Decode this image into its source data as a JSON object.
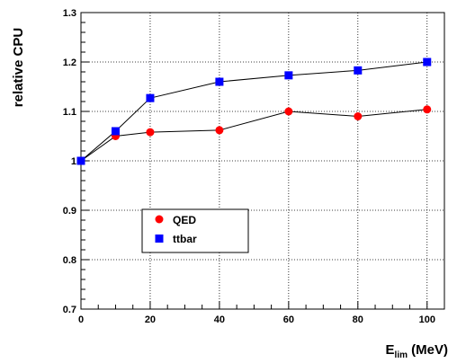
{
  "chart_data": {
    "type": "line",
    "title": "",
    "xlabel_main": "E",
    "xlabel_sub": "lim",
    "xlabel_unit": " (MeV)",
    "ylabel": "relative CPU",
    "xlim": [
      0,
      105
    ],
    "ylim": [
      0.7,
      1.3
    ],
    "xticks": [
      0,
      20,
      40,
      60,
      80,
      100
    ],
    "yticks": [
      0.7,
      0.8,
      0.9,
      1,
      1.1,
      1.2,
      1.3
    ],
    "ytick_labels": [
      "0.7",
      "0.8",
      "0.9",
      "1",
      "1.1",
      "1.2",
      "1.3"
    ],
    "grid": true,
    "legend_position": "lower-left",
    "series": [
      {
        "name": "QED",
        "color": "#ff0000",
        "marker": "circle",
        "x": [
          0,
          10,
          20,
          40,
          60,
          80,
          100
        ],
        "y": [
          1.0,
          1.05,
          1.058,
          1.062,
          1.1,
          1.09,
          1.104
        ]
      },
      {
        "name": "ttbar",
        "color": "#0000ff",
        "marker": "square",
        "x": [
          0,
          10,
          20,
          40,
          60,
          80,
          100
        ],
        "y": [
          1.0,
          1.06,
          1.127,
          1.16,
          1.173,
          1.183,
          1.2
        ]
      }
    ]
  }
}
